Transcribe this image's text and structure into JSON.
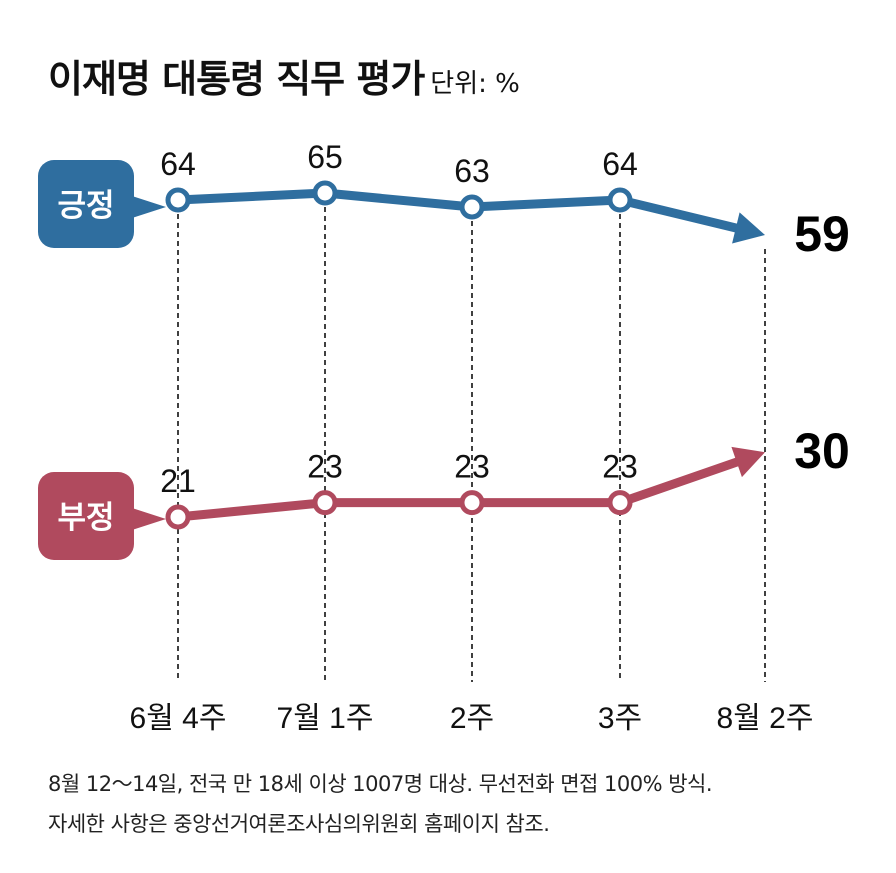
{
  "chart_data": {
    "type": "line",
    "title": "이재명 대통령 직무 평가",
    "unit_label": "단위: %",
    "categories": [
      "6월 4주",
      "7월 1주",
      "2주",
      "3주",
      "8월 2주"
    ],
    "series": [
      {
        "name": "긍정",
        "values": [
          64,
          65,
          63,
          64,
          59
        ],
        "color": "#2f6e9f"
      },
      {
        "name": "부정",
        "values": [
          21,
          23,
          23,
          23,
          30
        ],
        "color": "#b04a5e"
      }
    ],
    "grid": false
  },
  "notes": [
    "8월 12～14일, 전국 만 18세 이상 1007명 대상. 무선전화 면접 100% 방식.",
    "자세한 사항은 중앙선거여론조사심의위원회 홈페이지 참조."
  ]
}
